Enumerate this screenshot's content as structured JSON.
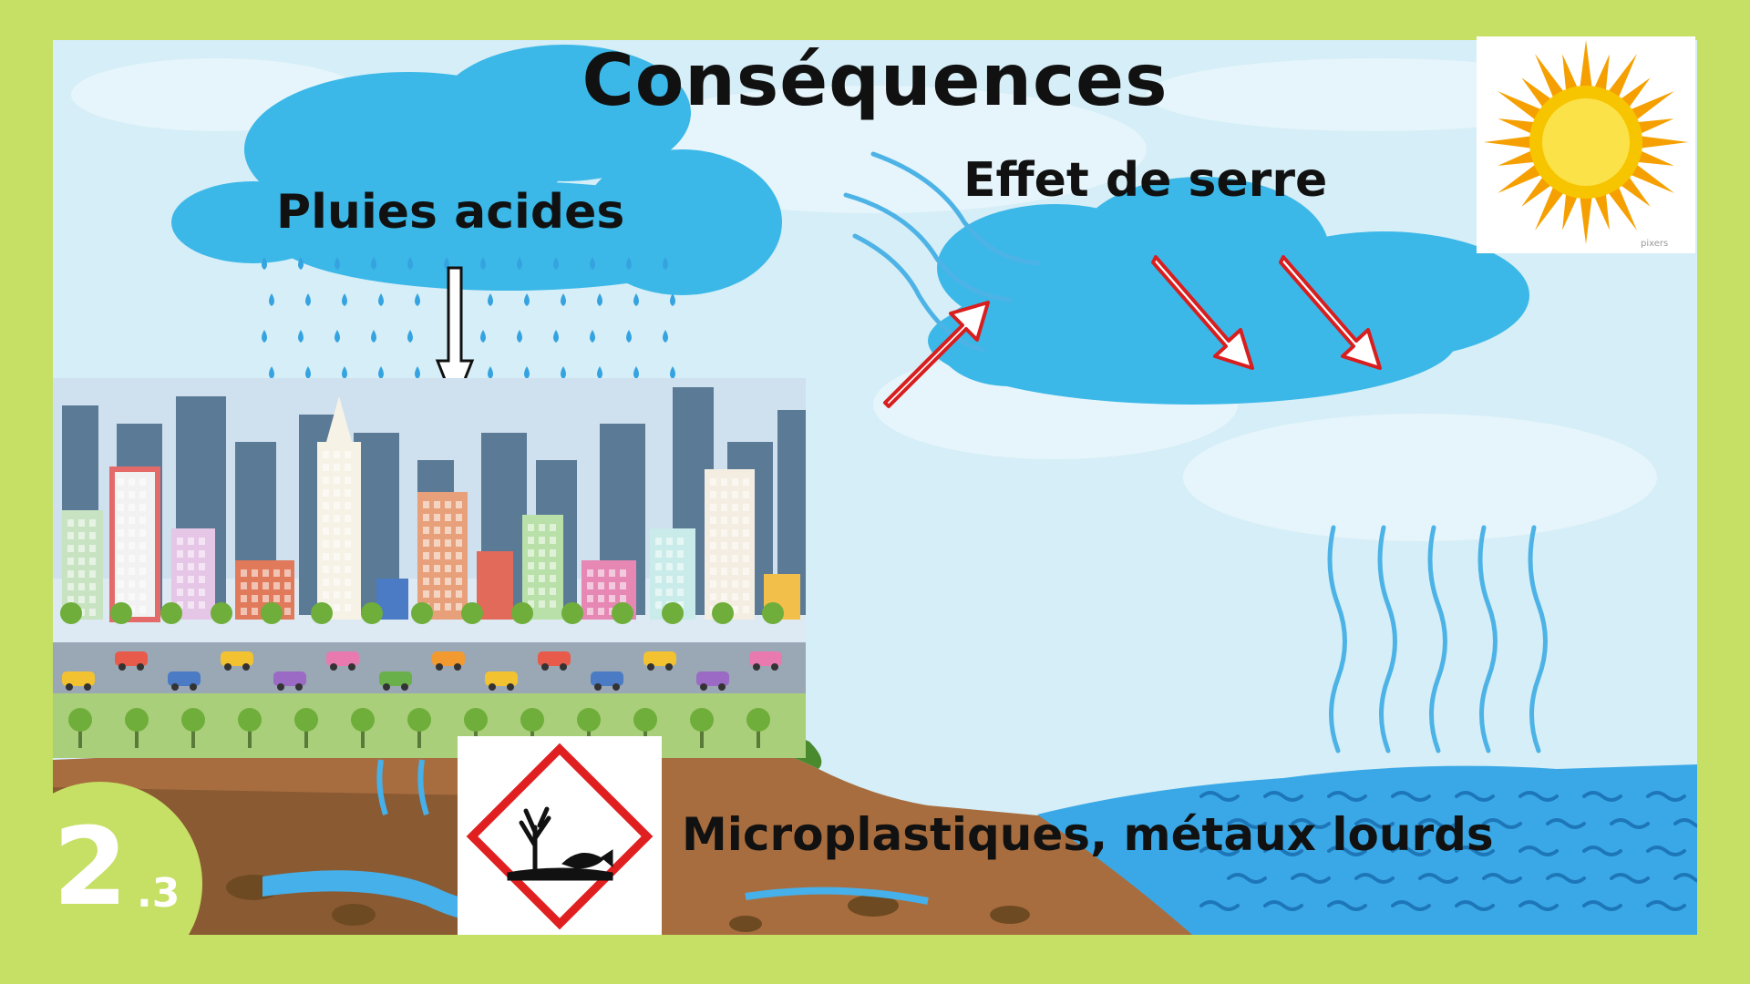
{
  "slide": {
    "title": "Conséquences",
    "badge_main": "2",
    "badge_sub": ".3"
  },
  "labels": {
    "acid_rain": "Pluies acides",
    "greenhouse": "Effet de serre",
    "pollution": "Microplastiques, métaux lourds"
  },
  "image_credits": {
    "sun": "pixers"
  },
  "icons": {
    "sun": "sun-icon",
    "hazard": "environmental-hazard-icon",
    "city": "city-skyline-illustration"
  },
  "colors": {
    "frame": "#c5e064",
    "sky": "#d6eef7",
    "cloud": "#3bb8e8",
    "rain": "#34a3e0",
    "arrow": "#d81e1e",
    "water": "#3aa8e6",
    "soil": "#a86d3f",
    "hazard_border": "#e02020"
  }
}
